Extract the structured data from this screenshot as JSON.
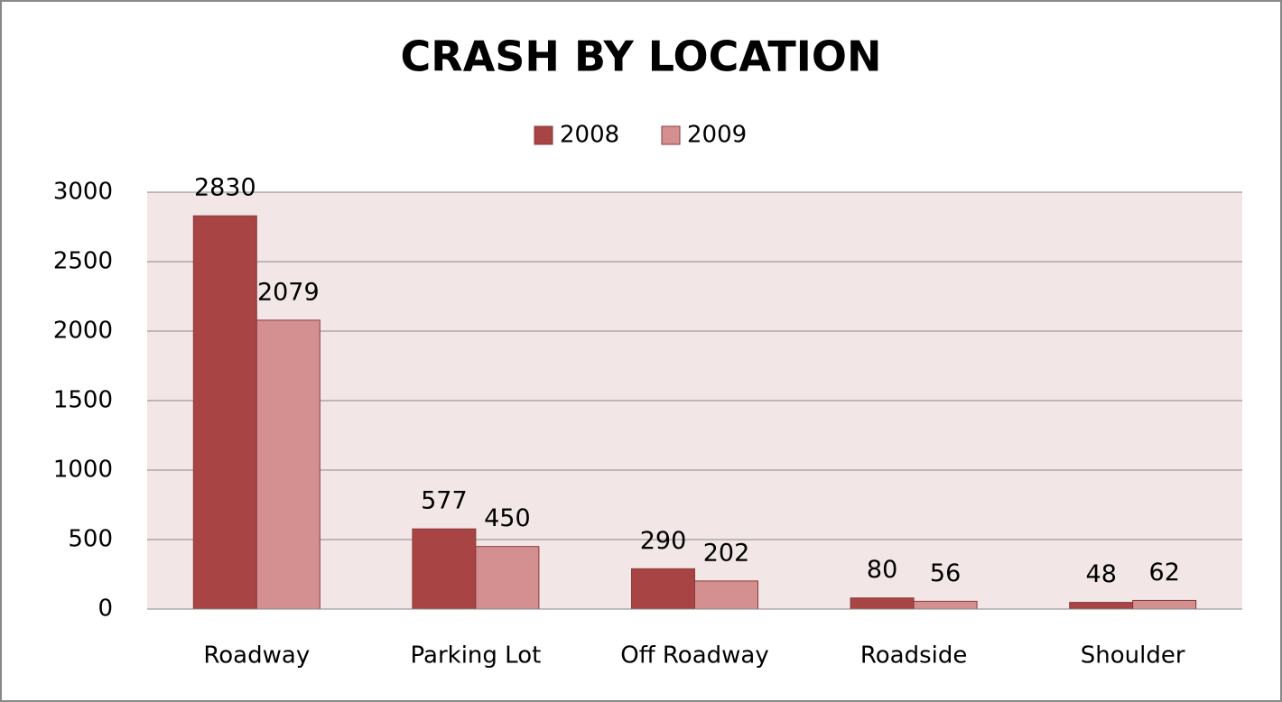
{
  "chart_data": {
    "type": "bar",
    "title": "CRASH BY LOCATION",
    "categories": [
      "Roadway",
      "Parking Lot",
      "Off Roadway",
      "Roadside",
      "Shoulder"
    ],
    "series": [
      {
        "name": "2008",
        "color": "#a84444",
        "values": [
          2830,
          577,
          290,
          80,
          48
        ]
      },
      {
        "name": "2009",
        "color": "#d49090",
        "values": [
          2079,
          450,
          202,
          56,
          62
        ]
      }
    ],
    "ylim": [
      0,
      3000
    ],
    "yticks": [
      0,
      500,
      1000,
      1500,
      2000,
      2500,
      3000
    ],
    "grid": true,
    "legend": "top"
  }
}
